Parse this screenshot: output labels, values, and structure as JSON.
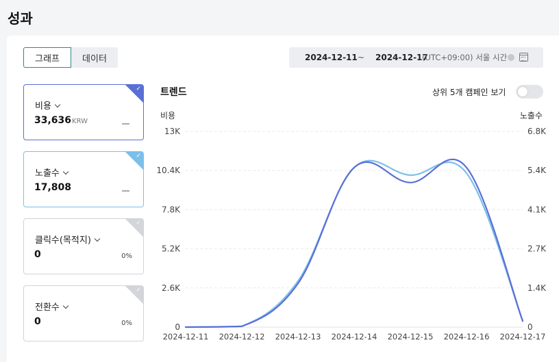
{
  "page": {
    "title": "성과"
  },
  "view_toggle": {
    "graph_label": "그래프",
    "data_label": "데이터"
  },
  "date_range": {
    "start": "2024-12-11",
    "separator": "~",
    "end": "2024-12-17",
    "timezone": "(UTC+09:00) 서울 시간"
  },
  "cards": [
    {
      "label": "비용",
      "value": "33,636",
      "unit": "KRW",
      "percent": "",
      "selected": true,
      "color": "#5a6fd6"
    },
    {
      "label": "노출수",
      "value": "17,808",
      "unit": "",
      "percent": "",
      "selected": true,
      "color": "#7cbfe8"
    },
    {
      "label": "클릭수(목적지)",
      "value": "0",
      "unit": "",
      "percent": "0%",
      "selected": false,
      "color": "#d3d5d9"
    },
    {
      "label": "전환수",
      "value": "0",
      "unit": "",
      "percent": "0%",
      "selected": false,
      "color": "#d3d5d9"
    }
  ],
  "trend": {
    "title": "트렌드",
    "top5_label": "상위 5개 캠페인 보기",
    "top5_enabled": false
  },
  "chart_data": {
    "type": "line",
    "x": [
      "2024-12-11",
      "2024-12-12",
      "2024-12-13",
      "2024-12-14",
      "2024-12-15",
      "2024-12-16",
      "2024-12-17"
    ],
    "ylabel": "비용",
    "ylabel_right": "노출수",
    "ylim": [
      0,
      13000
    ],
    "ylim_right": [
      0,
      6800
    ],
    "yticks": [
      "0",
      "2.6K",
      "5.2K",
      "7.8K",
      "10.4K",
      "13K"
    ],
    "yticks_right": [
      "0",
      "1.4K",
      "2.7K",
      "4.1K",
      "5.4K",
      "6.8K"
    ],
    "grid": true,
    "series": [
      {
        "name": "비용",
        "axis": "left",
        "color": "#5a6fd6",
        "values": [
          0,
          50,
          2900,
          10600,
          9600,
          10600,
          400
        ]
      },
      {
        "name": "노출수",
        "axis": "right",
        "color": "#7cbfe8",
        "values": [
          0,
          30,
          1600,
          5540,
          5280,
          5350,
          220
        ]
      }
    ]
  }
}
